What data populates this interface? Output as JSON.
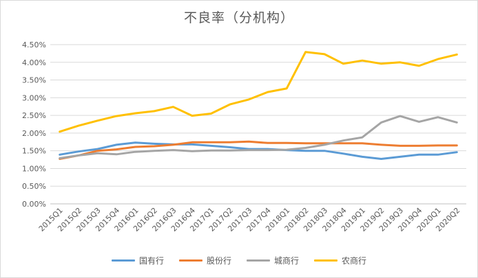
{
  "chart_data": {
    "type": "line",
    "title": "不良率（分机构）",
    "xlabel": "",
    "ylabel": "",
    "categories": [
      "2015Q1",
      "2015Q2",
      "2015Q3",
      "2015Q4",
      "2016Q1",
      "2016Q2",
      "2016Q3",
      "2016Q4",
      "2017Q1",
      "2017Q2",
      "2017Q3",
      "2017Q4",
      "2018Q1",
      "2018Q2",
      "2018Q3",
      "2018Q4",
      "2019Q1",
      "2019Q2",
      "2019Q3",
      "2019Q4",
      "2020Q1",
      "2020Q2"
    ],
    "ylim": [
      0,
      4.5
    ],
    "yticks": [
      "0.00%",
      "0.50%",
      "1.00%",
      "1.50%",
      "2.00%",
      "2.50%",
      "3.00%",
      "3.50%",
      "4.00%",
      "4.50%"
    ],
    "grid": true,
    "legend_position": "bottom",
    "series": [
      {
        "name": "国有行",
        "color": "#5b9bd5",
        "values": [
          1.39,
          1.48,
          1.55,
          1.67,
          1.73,
          1.7,
          1.68,
          1.68,
          1.64,
          1.6,
          1.55,
          1.55,
          1.52,
          1.5,
          1.5,
          1.42,
          1.33,
          1.27,
          1.33,
          1.39,
          1.39,
          1.46
        ]
      },
      {
        "name": "股份行",
        "color": "#ed7d31",
        "values": [
          1.27,
          1.37,
          1.5,
          1.54,
          1.61,
          1.63,
          1.67,
          1.74,
          1.74,
          1.74,
          1.76,
          1.72,
          1.72,
          1.71,
          1.71,
          1.71,
          1.71,
          1.67,
          1.64,
          1.64,
          1.65,
          1.65
        ]
      },
      {
        "name": "城商行",
        "color": "#a5a5a5",
        "values": [
          1.29,
          1.37,
          1.43,
          1.4,
          1.47,
          1.5,
          1.52,
          1.49,
          1.51,
          1.51,
          1.52,
          1.52,
          1.53,
          1.58,
          1.67,
          1.79,
          1.88,
          2.3,
          2.48,
          2.32,
          2.45,
          2.3
        ]
      },
      {
        "name": "农商行",
        "color": "#ffc000",
        "values": [
          2.04,
          2.21,
          2.35,
          2.48,
          2.56,
          2.62,
          2.74,
          2.49,
          2.55,
          2.81,
          2.95,
          3.16,
          3.26,
          4.29,
          4.23,
          3.96,
          4.05,
          3.96,
          4.0,
          3.9,
          4.09,
          4.22
        ]
      }
    ]
  }
}
